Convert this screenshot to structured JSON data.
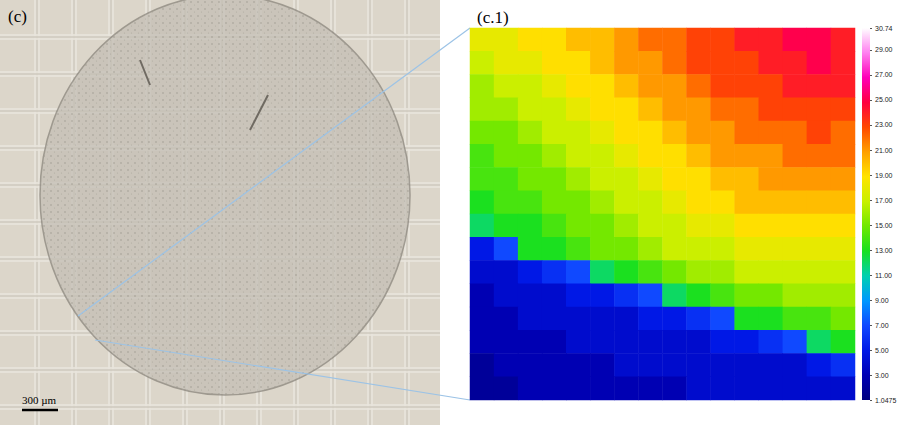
{
  "image_panel": {
    "label": "(c)",
    "scale_bar": "300 µm"
  },
  "chart_data": {
    "type": "heatmap",
    "title": "(c.1)",
    "tick_labels": false,
    "cells": [
      [
        18,
        18,
        19,
        19,
        20,
        20,
        21,
        22,
        22,
        23,
        23,
        24,
        24,
        25,
        25,
        24
      ],
      [
        17,
        18,
        18,
        19,
        19,
        20,
        21,
        21,
        22,
        23,
        23,
        23,
        24,
        24,
        25,
        24
      ],
      [
        16,
        17,
        17,
        18,
        19,
        19,
        20,
        21,
        21,
        22,
        23,
        23,
        23,
        24,
        24,
        24
      ],
      [
        16,
        16,
        17,
        17,
        18,
        19,
        19,
        20,
        21,
        21,
        22,
        22,
        23,
        23,
        23,
        23
      ],
      [
        15,
        15,
        16,
        17,
        17,
        18,
        19,
        19,
        20,
        21,
        21,
        22,
        22,
        22,
        23,
        22
      ],
      [
        14,
        15,
        15,
        16,
        17,
        17,
        18,
        19,
        19,
        20,
        21,
        21,
        21,
        22,
        22,
        22
      ],
      [
        14,
        14,
        15,
        15,
        16,
        17,
        17,
        18,
        19,
        19,
        20,
        20,
        21,
        21,
        21,
        21
      ],
      [
        13,
        14,
        14,
        15,
        15,
        16,
        17,
        17,
        18,
        19,
        19,
        20,
        20,
        20,
        20,
        20
      ],
      [
        12,
        13,
        13,
        14,
        15,
        15,
        16,
        17,
        17,
        18,
        18,
        19,
        19,
        19,
        19,
        19
      ],
      [
        5,
        7,
        13,
        13,
        14,
        15,
        15,
        16,
        17,
        17,
        17,
        18,
        18,
        18,
        18,
        18
      ],
      [
        4,
        4,
        5,
        6,
        7,
        12,
        13,
        14,
        15,
        16,
        16,
        17,
        17,
        17,
        17,
        17
      ],
      [
        3,
        4,
        4,
        4,
        5,
        5,
        6,
        7,
        12,
        13,
        14,
        15,
        15,
        16,
        16,
        16
      ],
      [
        3,
        3,
        4,
        4,
        4,
        4,
        4,
        5,
        5,
        6,
        7,
        13,
        13,
        14,
        14,
        15
      ],
      [
        3,
        3,
        3,
        3,
        4,
        4,
        4,
        4,
        4,
        4,
        5,
        5,
        6,
        7,
        12,
        13
      ],
      [
        2,
        3,
        3,
        3,
        3,
        3,
        4,
        4,
        4,
        4,
        4,
        4,
        4,
        4,
        5,
        6
      ],
      [
        2,
        2,
        3,
        3,
        3,
        3,
        3,
        3,
        3,
        4,
        4,
        4,
        4,
        4,
        4,
        4
      ]
    ],
    "colorbar": {
      "range": [
        1.0475,
        30.74
      ],
      "ticks": [
        30.74,
        {
          "value": 29,
          "label": "29.00"
        },
        {
          "value": 27,
          "label": "27.00"
        },
        {
          "value": 25,
          "label": "25.00"
        },
        {
          "value": 23,
          "label": "23.00"
        },
        {
          "value": 21,
          "label": "21.00"
        },
        {
          "value": 19,
          "label": "19.00"
        },
        {
          "value": 17,
          "label": "17.00"
        },
        {
          "value": 15,
          "label": "15.00"
        },
        {
          "value": 13,
          "label": "13.00"
        },
        {
          "value": 11,
          "label": "11.00"
        },
        {
          "value": 9,
          "label": "9.00"
        },
        {
          "value": 7,
          "label": "7.00"
        },
        {
          "value": 5,
          "label": "5.00"
        },
        {
          "value": 3,
          "label": "3.00"
        },
        1.0475
      ]
    }
  }
}
